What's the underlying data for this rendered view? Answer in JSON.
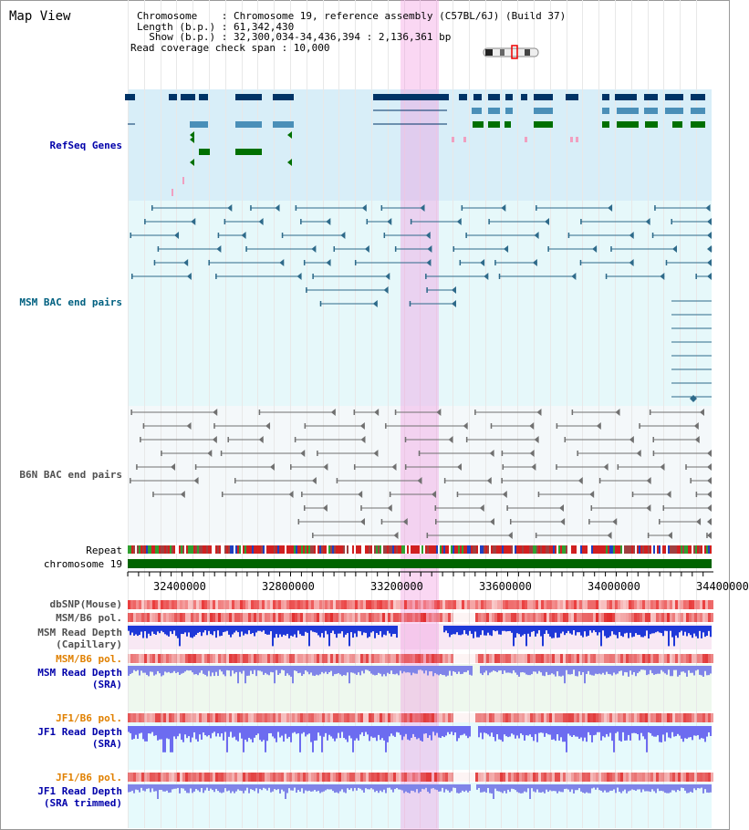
{
  "page": {
    "title": "Map View"
  },
  "info": {
    "line1": "Chromosome    : Chromosome 19, reference assembly (C57BL/6J) (Build 37)",
    "line2": "Length (b.p.) : 61,342,430",
    "line3": "  Show (b.p.) : 32,300,034-34,436,394 : 2,136,361 bp",
    "line4": "Read coverage check span : 10,000"
  },
  "tracks": {
    "refseq": "RefSeq Genes",
    "msm_bac": "MSM BAC end pairs",
    "b6n_bac": "B6N BAC end pairs",
    "repeat": "Repeat",
    "chromosome": "chromosome 19",
    "dbsnp": "dbSNP(Mouse)",
    "msm_b6_pol": "MSM/B6 pol.",
    "msm_depth_cap_1": "MSM Read Depth",
    "msm_depth_cap_2": "(Capillary)",
    "msm_b6_pol_2": "MSM/B6 pol.",
    "msm_depth_sra_1": "MSM Read Depth",
    "msm_depth_sra_2": "(SRA)",
    "jf1_b6_pol": "JF1/B6 pol.",
    "jf1_depth_sra_1": "JF1 Read Depth",
    "jf1_depth_sra_2": "(SRA)",
    "jf1_b6_pol_2": "JF1/B6 pol.",
    "jf1_depth_trim_1": "JF1 Read Depth",
    "jf1_depth_trim_2": "(SRA trimmed)"
  },
  "axis": {
    "ticks": [
      "32400000",
      "32800000",
      "33200000",
      "33600000",
      "34000000",
      "34400000"
    ],
    "range": [
      32300034,
      34436394
    ]
  },
  "colors": {
    "refseq_bg": "#d8eef8",
    "bac_bg": "#e6f8fa",
    "b6n_bg": "#f4f8fa",
    "highlight": "#f6c8ec",
    "chromosome": "#006400",
    "navy": "#003366",
    "steel": "#4a8fb8",
    "green": "#007000",
    "orange_label": "#e08000",
    "blue_label": "#0000aa"
  }
}
